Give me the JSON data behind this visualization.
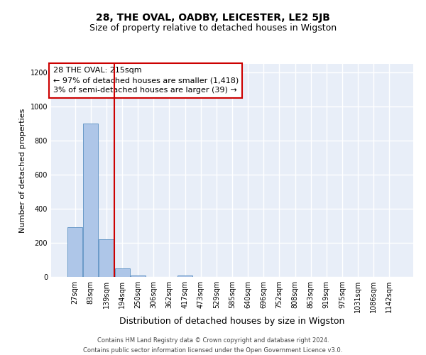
{
  "title": "28, THE OVAL, OADBY, LEICESTER, LE2 5JB",
  "subtitle": "Size of property relative to detached houses in Wigston",
  "xlabel": "Distribution of detached houses by size in Wigston",
  "ylabel": "Number of detached properties",
  "categories": [
    "27sqm",
    "83sqm",
    "139sqm",
    "194sqm",
    "250sqm",
    "306sqm",
    "362sqm",
    "417sqm",
    "473sqm",
    "529sqm",
    "585sqm",
    "640sqm",
    "696sqm",
    "752sqm",
    "808sqm",
    "863sqm",
    "919sqm",
    "975sqm",
    "1031sqm",
    "1086sqm",
    "1142sqm"
  ],
  "values": [
    290,
    900,
    220,
    50,
    10,
    0,
    0,
    10,
    0,
    0,
    0,
    0,
    0,
    0,
    0,
    0,
    0,
    0,
    0,
    0,
    0
  ],
  "bar_color": "#aec6e8",
  "bar_edge_color": "#5a8fc2",
  "vline_x_index": 2.5,
  "vline_color": "#cc0000",
  "annotation_box_text": "28 THE OVAL: 215sqm\n← 97% of detached houses are smaller (1,418)\n3% of semi-detached houses are larger (39) →",
  "annotation_box_color": "#cc0000",
  "ylim": [
    0,
    1250
  ],
  "yticks": [
    0,
    200,
    400,
    600,
    800,
    1000,
    1200
  ],
  "bg_color": "#e8eef8",
  "grid_color": "#ffffff",
  "footer_line1": "Contains HM Land Registry data © Crown copyright and database right 2024.",
  "footer_line2": "Contains public sector information licensed under the Open Government Licence v3.0.",
  "title_fontsize": 10,
  "subtitle_fontsize": 9,
  "xlabel_fontsize": 9,
  "ylabel_fontsize": 8,
  "tick_fontsize": 7,
  "annotation_fontsize": 8,
  "footer_fontsize": 6
}
